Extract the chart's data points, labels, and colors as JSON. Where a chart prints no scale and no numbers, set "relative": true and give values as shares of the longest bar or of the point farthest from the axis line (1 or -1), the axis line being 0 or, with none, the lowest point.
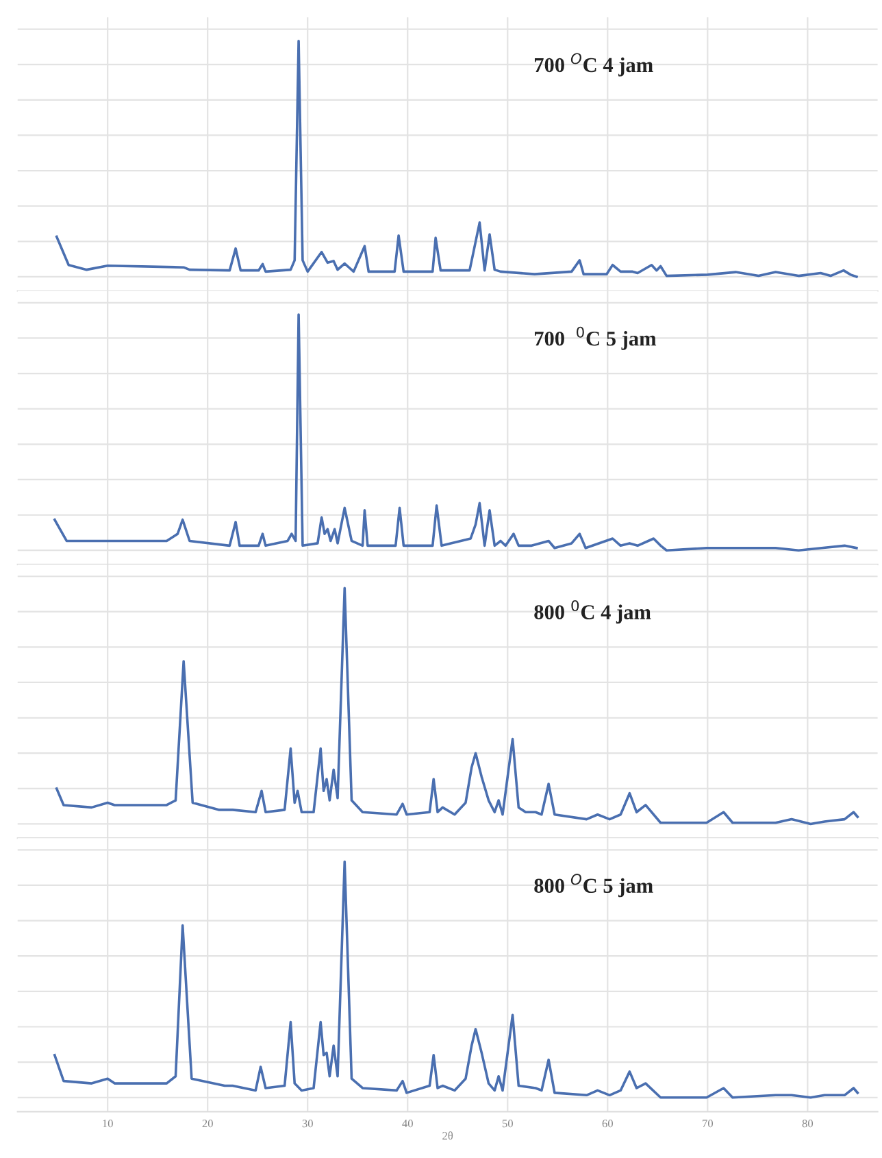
{
  "chart_data": [
    {
      "type": "line",
      "relative": true,
      "xlim": [
        1,
        87
      ],
      "xticks": [
        10,
        20,
        30,
        40,
        50,
        60,
        70,
        80
      ],
      "tick_labels": false,
      "grid": true,
      "legend": false,
      "marker": "none",
      "line_style": "solid",
      "annotations": [
        "700 $^{O}$C 4 jam"
      ],
      "series": [
        {
          "color": "#4a6fb0",
          "x": [
            4.9,
            6.1,
            7.9,
            10.0,
            17.6,
            18.2,
            22.2,
            22.8,
            23.3,
            25.1,
            25.5,
            25.8,
            28.3,
            28.7,
            29.1,
            29.5,
            30.0,
            31.4,
            32.0,
            32.6,
            33.0,
            33.7,
            34.6,
            35.7,
            36.1,
            38.7,
            39.1,
            39.6,
            42.5,
            42.8,
            43.3,
            46.2,
            47.2,
            47.7,
            48.2,
            48.7,
            49.3,
            52.7,
            56.4,
            57.2,
            57.6,
            59.9,
            60.5,
            61.3,
            62.5,
            63.0,
            64.4,
            64.9,
            65.3,
            65.9,
            70.0,
            72.8,
            75.1,
            76.8,
            79.1,
            81.3,
            82.3,
            83.6,
            84.3,
            84.9
          ],
          "values": [
            0.17,
            0.05,
            0.03,
            0.047,
            0.04,
            0.03,
            0.027,
            0.12,
            0.027,
            0.027,
            0.054,
            0.022,
            0.03,
            0.07,
            1.0,
            0.07,
            0.022,
            0.105,
            0.06,
            0.067,
            0.03,
            0.056,
            0.022,
            0.13,
            0.022,
            0.022,
            0.175,
            0.022,
            0.022,
            0.165,
            0.027,
            0.027,
            0.23,
            0.027,
            0.18,
            0.03,
            0.022,
            0.011,
            0.022,
            0.07,
            0.011,
            0.011,
            0.05,
            0.022,
            0.022,
            0.016,
            0.05,
            0.027,
            0.045,
            0.004,
            0.009,
            0.02,
            0.004,
            0.02,
            0.004,
            0.016,
            0.004,
            0.027,
            0.009,
            0.0
          ]
        }
      ]
    },
    {
      "type": "line",
      "relative": true,
      "xlim": [
        1,
        87
      ],
      "xticks": [
        10,
        20,
        30,
        40,
        50,
        60,
        70,
        80
      ],
      "tick_labels": false,
      "grid": true,
      "legend": false,
      "marker": "none",
      "line_style": "solid",
      "annotations": [
        "700  $^{0}$C 5 jam"
      ],
      "series": [
        {
          "color": "#4a6fb0",
          "x": [
            4.7,
            5.9,
            10.0,
            15.9,
            17.0,
            17.5,
            18.2,
            22.2,
            22.8,
            23.2,
            25.1,
            25.5,
            25.8,
            28.0,
            28.4,
            28.8,
            29.1,
            29.5,
            31.0,
            31.4,
            31.7,
            32.0,
            32.3,
            32.7,
            33.0,
            33.7,
            34.4,
            35.5,
            35.7,
            36.0,
            38.8,
            39.2,
            39.6,
            42.5,
            42.9,
            43.4,
            46.3,
            46.8,
            47.2,
            47.7,
            48.2,
            48.7,
            49.3,
            49.8,
            50.6,
            51.1,
            52.4,
            54.1,
            54.7,
            56.4,
            57.2,
            57.8,
            60.5,
            61.3,
            62.2,
            63.0,
            64.6,
            65.3,
            65.9,
            69.9,
            72.8,
            76.8,
            79.1,
            81.4,
            83.7,
            84.9
          ],
          "values": [
            0.13,
            0.04,
            0.04,
            0.04,
            0.07,
            0.13,
            0.04,
            0.02,
            0.12,
            0.02,
            0.02,
            0.07,
            0.02,
            0.04,
            0.07,
            0.04,
            1.0,
            0.02,
            0.03,
            0.14,
            0.07,
            0.09,
            0.04,
            0.09,
            0.03,
            0.18,
            0.04,
            0.02,
            0.17,
            0.02,
            0.02,
            0.18,
            0.02,
            0.02,
            0.19,
            0.02,
            0.05,
            0.11,
            0.2,
            0.02,
            0.17,
            0.02,
            0.04,
            0.02,
            0.07,
            0.02,
            0.02,
            0.04,
            0.01,
            0.03,
            0.07,
            0.01,
            0.05,
            0.02,
            0.03,
            0.02,
            0.05,
            0.02,
            0.0,
            0.01,
            0.01,
            0.01,
            0.0,
            0.01,
            0.02,
            0.01
          ]
        }
      ]
    },
    {
      "type": "line",
      "relative": true,
      "xlim": [
        1,
        87
      ],
      "xticks": [
        10,
        20,
        30,
        40,
        50,
        60,
        70,
        80
      ],
      "tick_labels": false,
      "grid": true,
      "legend": false,
      "marker": "none",
      "line_style": "solid",
      "annotations": [
        "800 $^{0}$C 4 jam"
      ],
      "series": [
        {
          "color": "#4a6fb0",
          "x": [
            4.9,
            5.6,
            8.4,
            10.0,
            10.7,
            15.9,
            16.8,
            17.6,
            18.5,
            21.1,
            22.5,
            24.8,
            25.4,
            25.8,
            27.7,
            28.3,
            28.7,
            29.0,
            29.4,
            30.6,
            31.3,
            31.6,
            31.9,
            32.2,
            32.6,
            33.0,
            33.7,
            34.4,
            35.5,
            38.9,
            39.5,
            39.9,
            42.2,
            42.6,
            43.0,
            43.5,
            44.7,
            45.8,
            46.4,
            46.8,
            47.4,
            48.1,
            48.7,
            49.1,
            49.5,
            50.5,
            51.1,
            51.8,
            52.8,
            53.4,
            54.1,
            54.7,
            57.9,
            59.0,
            60.2,
            61.3,
            62.2,
            62.9,
            63.8,
            65.3,
            69.9,
            71.6,
            72.5,
            76.8,
            78.4,
            80.3,
            81.7,
            83.7,
            84.6,
            85.0
          ],
          "values": [
            0.15,
            0.08,
            0.07,
            0.09,
            0.08,
            0.08,
            0.1,
            0.69,
            0.09,
            0.06,
            0.06,
            0.05,
            0.14,
            0.05,
            0.06,
            0.32,
            0.09,
            0.14,
            0.05,
            0.05,
            0.32,
            0.14,
            0.19,
            0.1,
            0.23,
            0.11,
            1.0,
            0.1,
            0.05,
            0.04,
            0.085,
            0.04,
            0.05,
            0.19,
            0.05,
            0.07,
            0.04,
            0.09,
            0.24,
            0.3,
            0.2,
            0.1,
            0.05,
            0.1,
            0.04,
            0.36,
            0.07,
            0.05,
            0.05,
            0.04,
            0.17,
            0.04,
            0.02,
            0.04,
            0.02,
            0.04,
            0.13,
            0.05,
            0.08,
            0.005,
            0.005,
            0.05,
            0.005,
            0.005,
            0.02,
            0.0,
            0.01,
            0.02,
            0.05,
            0.03
          ]
        }
      ]
    },
    {
      "type": "line",
      "relative": true,
      "xlim": [
        1,
        87
      ],
      "xticks": [
        10,
        20,
        30,
        40,
        50,
        60,
        70,
        80
      ],
      "tick_labels": "x",
      "grid": true,
      "legend": false,
      "marker": "none",
      "line_style": "solid",
      "xlabel": "2θ",
      "annotations": [
        "800 $^{O}$C 5 jam"
      ],
      "series": [
        {
          "color": "#4a6fb0",
          "x": [
            4.7,
            5.6,
            8.4,
            10.0,
            10.7,
            15.9,
            16.8,
            17.5,
            18.4,
            21.7,
            22.5,
            24.8,
            25.3,
            25.8,
            27.7,
            28.3,
            28.7,
            29.4,
            30.6,
            31.3,
            31.6,
            31.9,
            32.2,
            32.6,
            33.0,
            33.7,
            34.4,
            35.5,
            38.9,
            39.5,
            39.9,
            42.2,
            42.6,
            43.0,
            43.5,
            44.7,
            45.8,
            46.4,
            46.8,
            47.4,
            48.1,
            48.7,
            49.1,
            49.5,
            50.5,
            51.1,
            52.8,
            53.4,
            54.1,
            54.7,
            57.9,
            59.0,
            60.2,
            61.3,
            62.2,
            62.9,
            63.8,
            65.3,
            69.9,
            71.6,
            72.5,
            76.8,
            78.4,
            80.3,
            81.7,
            83.7,
            84.6,
            85.0
          ],
          "values": [
            0.18,
            0.07,
            0.06,
            0.08,
            0.06,
            0.06,
            0.09,
            0.73,
            0.08,
            0.05,
            0.05,
            0.03,
            0.13,
            0.04,
            0.05,
            0.32,
            0.06,
            0.03,
            0.04,
            0.32,
            0.18,
            0.19,
            0.09,
            0.22,
            0.09,
            1.0,
            0.08,
            0.04,
            0.03,
            0.07,
            0.02,
            0.05,
            0.18,
            0.04,
            0.05,
            0.03,
            0.08,
            0.22,
            0.29,
            0.19,
            0.06,
            0.03,
            0.09,
            0.03,
            0.35,
            0.05,
            0.04,
            0.03,
            0.16,
            0.02,
            0.01,
            0.03,
            0.01,
            0.03,
            0.11,
            0.04,
            0.06,
            0.0,
            0.0,
            0.04,
            0.0,
            0.01,
            0.01,
            0.0,
            0.01,
            0.01,
            0.04,
            0.02
          ]
        }
      ]
    }
  ]
}
